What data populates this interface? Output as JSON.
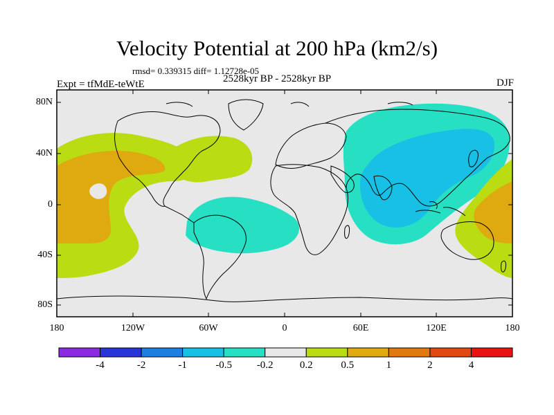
{
  "figure": {
    "title": "Velocity Potential at 200 hPa (km2/s)",
    "stats": "rmsd= 0.339315 diff= 1.12728e-05",
    "period": "2528kyr BP - 2528kyr BP",
    "experiment": "Expt = tfMdE-teWtE",
    "season": "DJF"
  },
  "chart_data": {
    "type": "heatmap",
    "projection": "cylindrical-equidistant",
    "variable": "200 hPa velocity potential difference",
    "units": "km2/s",
    "lat_ticks": [
      "80N",
      "40N",
      "0",
      "40S",
      "80S"
    ],
    "lon_ticks": [
      "180",
      "120W",
      "60W",
      "0",
      "60E",
      "120E",
      "180"
    ],
    "lon_range": [
      -180,
      180
    ],
    "lat_range": [
      -90,
      90
    ],
    "colorbar": {
      "labels": [
        "-4",
        "-2",
        "-1",
        "-0.5",
        "-0.2",
        "0.2",
        "0.5",
        "1",
        "2",
        "4"
      ],
      "colors": [
        "#8a2be2",
        "#2a35d8",
        "#1e7fe0",
        "#19c0e6",
        "#27e0c4",
        "#e8e8e8",
        "#b9dc12",
        "#dfaa10",
        "#e07a10",
        "#e04a10",
        "#e81414"
      ]
    },
    "regions": [
      {
        "name": "eastern-pacific-positive",
        "level": "0.5 to 1",
        "color": "#dfaa10"
      },
      {
        "name": "north-atlantic-positive",
        "level": "0.2 to 0.5",
        "color": "#b9dc12"
      },
      {
        "name": "south-america-negative",
        "level": "-0.5 to -0.2",
        "color": "#27e0c4"
      },
      {
        "name": "asia-indian-ocean-negative",
        "level": "-1 to -0.5",
        "color": "#19c0e6"
      },
      {
        "name": "western-pacific-positive",
        "level": "0.5 to 1",
        "color": "#dfaa10"
      }
    ]
  }
}
